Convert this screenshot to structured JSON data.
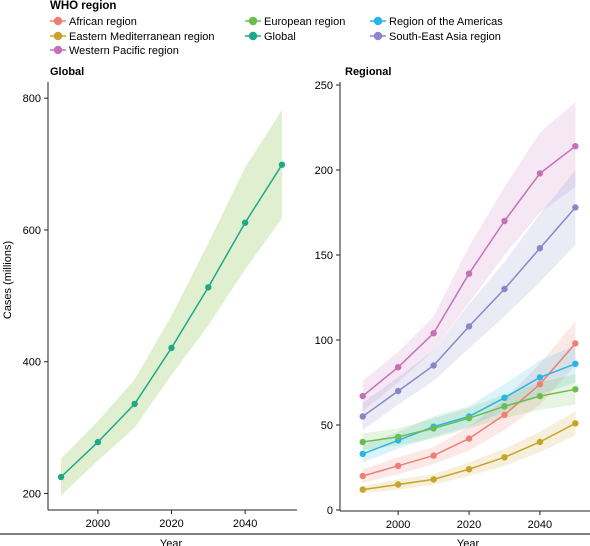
{
  "legend": {
    "title": "WHO region",
    "items": [
      {
        "label": "African region",
        "color": "#ee7f72"
      },
      {
        "label": "European region",
        "color": "#6bbd4e"
      },
      {
        "label": "Region of the Americas",
        "color": "#29b5e6"
      },
      {
        "label": "Eastern Mediterranean region",
        "color": "#c9a227"
      },
      {
        "label": "Global",
        "color": "#1fa887"
      },
      {
        "label": "South-East Asia region",
        "color": "#8a86c8"
      },
      {
        "label": "Western Pacific region",
        "color": "#c670b8"
      }
    ]
  },
  "chart_data": [
    {
      "type": "line",
      "title": "Global",
      "xlabel": "Year",
      "ylabel": "Cases (millions)",
      "xticks": [
        2000,
        2020,
        2040
      ],
      "yticks": [
        200,
        400,
        600,
        800
      ],
      "xlim": [
        1987,
        2053
      ],
      "ylim": [
        178,
        820
      ],
      "x": [
        1990,
        2000,
        2010,
        2020,
        2030,
        2040,
        2050
      ],
      "series": [
        {
          "name": "Global",
          "color": "#1fa887",
          "band_color": "#d7e9c2",
          "values": [
            225,
            278,
            336,
            421,
            513,
            611,
            699
          ],
          "lower": [
            197,
            250,
            300,
            380,
            455,
            540,
            618
          ],
          "upper": [
            253,
            310,
            373,
            470,
            580,
            695,
            782
          ]
        }
      ]
    },
    {
      "type": "line",
      "title": "Regional",
      "xlabel": "Year",
      "ylabel": "",
      "xticks": [
        2000,
        2020,
        2040
      ],
      "yticks": [
        0,
        50,
        100,
        150,
        200,
        250
      ],
      "xlim": [
        1985,
        2053
      ],
      "ylim": [
        0,
        250
      ],
      "x": [
        1990,
        2000,
        2010,
        2020,
        2030,
        2040,
        2050
      ],
      "series": [
        {
          "name": "Western Pacific region",
          "color": "#c670b8",
          "values": [
            67,
            84,
            104,
            139,
            170,
            198,
            214
          ],
          "lower": [
            58,
            75,
            94,
            122,
            150,
            175,
            190
          ],
          "upper": [
            76,
            93,
            114,
            155,
            190,
            222,
            240
          ]
        },
        {
          "name": "South-East Asia region",
          "color": "#8a86c8",
          "values": [
            55,
            70,
            85,
            108,
            130,
            154,
            178
          ],
          "lower": [
            47,
            62,
            76,
            95,
            114,
            134,
            156
          ],
          "upper": [
            63,
            78,
            94,
            121,
            146,
            174,
            200
          ]
        },
        {
          "name": "African region",
          "color": "#ee7f72",
          "values": [
            20,
            26,
            32,
            42,
            56,
            74,
            98
          ],
          "lower": [
            16,
            21,
            27,
            35,
            47,
            62,
            85
          ],
          "upper": [
            24,
            31,
            37,
            49,
            65,
            86,
            111
          ]
        },
        {
          "name": "Region of the Americas",
          "color": "#29b5e6",
          "values": [
            33,
            41,
            49,
            55,
            66,
            78,
            86
          ],
          "lower": [
            28,
            36,
            43,
            49,
            58,
            68,
            75
          ],
          "upper": [
            38,
            46,
            55,
            61,
            74,
            88,
            97
          ]
        },
        {
          "name": "European region",
          "color": "#6bbd4e",
          "values": [
            40,
            43,
            48,
            54,
            61,
            67,
            71
          ],
          "lower": [
            35,
            38,
            42,
            48,
            54,
            59,
            62
          ],
          "upper": [
            45,
            48,
            54,
            60,
            68,
            75,
            80
          ]
        },
        {
          "name": "Eastern Mediterranean region",
          "color": "#c9a227",
          "values": [
            12,
            15,
            18,
            24,
            31,
            40,
            51
          ],
          "lower": [
            10,
            12,
            15,
            20,
            26,
            34,
            44
          ],
          "upper": [
            14,
            18,
            21,
            28,
            36,
            46,
            58
          ]
        }
      ]
    }
  ]
}
